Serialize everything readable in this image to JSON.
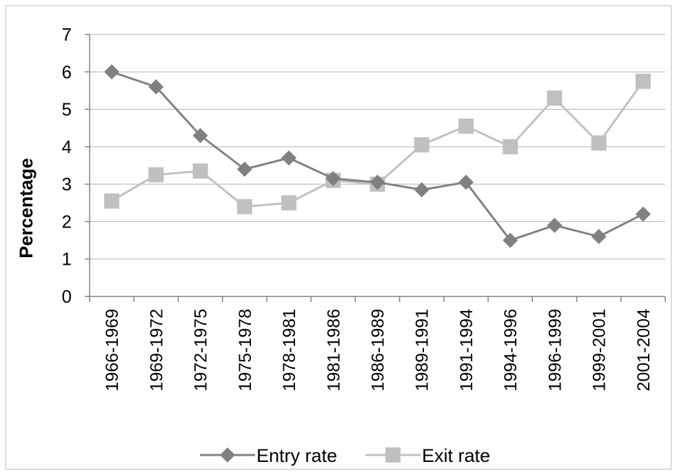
{
  "chart_data": {
    "type": "line",
    "title": "",
    "xlabel": "",
    "ylabel": "Percentage",
    "ylim": [
      0,
      7
    ],
    "yticks": [
      0,
      1,
      2,
      3,
      4,
      5,
      6,
      7
    ],
    "grid": true,
    "legend": "bottom",
    "categories": [
      "1966-1969",
      "1969-1972",
      "1972-1975",
      "1975-1978",
      "1978-1981",
      "1981-1986",
      "1986-1989",
      "1989-1991",
      "1991-1994",
      "1994-1996",
      "1996-1999",
      "1999-2001",
      "2001-2004"
    ],
    "series": [
      {
        "name": "Entry rate",
        "color": "#808080",
        "marker": "diamond",
        "values": [
          6.0,
          5.6,
          4.3,
          3.4,
          3.7,
          3.15,
          3.05,
          2.85,
          3.05,
          1.5,
          1.9,
          1.6,
          2.2
        ]
      },
      {
        "name": "Exit rate",
        "color": "#c0c0c0",
        "marker": "square",
        "values": [
          2.55,
          3.25,
          3.35,
          2.4,
          2.5,
          3.1,
          3.0,
          4.05,
          4.55,
          4.0,
          5.3,
          4.1,
          5.75
        ]
      }
    ]
  }
}
